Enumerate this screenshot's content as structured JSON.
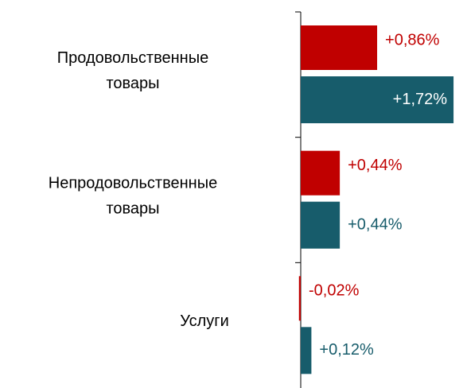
{
  "chart_data": {
    "type": "bar",
    "orientation": "horizontal",
    "categories": [
      "Продовольственные товары",
      "Непродовольственные товары",
      "Услуги"
    ],
    "series": [
      {
        "color": "#c00000",
        "values": [
          0.86,
          0.44,
          -0.02
        ],
        "value_labels": [
          "+0,86%",
          "+0,44%",
          "-0,02%"
        ]
      },
      {
        "color": "#175c6b",
        "values": [
          1.72,
          0.44,
          0.12
        ],
        "value_labels": [
          "+1,72%",
          "+0,44%",
          "+0,12%"
        ]
      }
    ],
    "xlim": [
      0,
      1.8
    ]
  }
}
